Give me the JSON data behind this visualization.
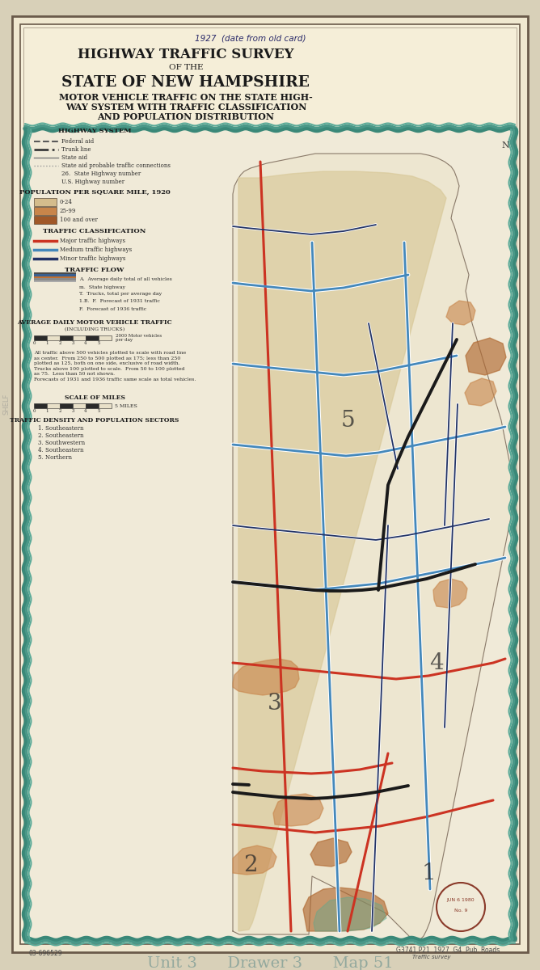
{
  "outer_bg": "#d8d0b8",
  "paper_color": "#f0e8d0",
  "inner_bg": "#f5eed8",
  "border_color": "#6a5a4a",
  "title_handwritten": "1927  (date from old card)",
  "title_line1": "HIGHWAY TRAFFIC SURVEY",
  "title_line2": "OF THE",
  "title_line3": "STATE OF NEW HAMPSHIRE",
  "title_line4": "MOTOR VEHICLE TRAFFIC ON THE STATE HIGH-",
  "title_line5": "WAY SYSTEM WITH TRAFFIC CLASSIFICATION",
  "title_line6": "AND POPULATION DISTRIBUTION",
  "legend_title_highway": "HIGHWAY SYSTEM",
  "legend_items_highway": [
    "Federal aid",
    "Trunk line",
    "State aid",
    "State aid probable traffic connections",
    "26.  State Highway number",
    "U.S. Highway number"
  ],
  "legend_title_pop": "POPULATION PER SQUARE MILE, 1920",
  "pop_colors": [
    "#d4bc8c",
    "#c8854a",
    "#a05828"
  ],
  "pop_labels": [
    "0-24",
    "25-99",
    "100 and over"
  ],
  "legend_title_traffic": "TRAFFIC CLASSIFICATION",
  "traffic_colors": [
    "#cc3322",
    "#4488bb",
    "#223366"
  ],
  "traffic_labels": [
    "Major traffic highways",
    "Medium traffic highways",
    "Minor traffic highways"
  ],
  "legend_title_flow": "TRAFFIC FLOW",
  "flow_labels": [
    "A.  Average daily total of all vehicles",
    "m.  State highway",
    "T.  Trucks, total per average day",
    "1.B.  F.  Forecast of 1931 traffic",
    "F.  Forecast of 1936 traffic"
  ],
  "avg_traffic_title": "AVERAGE DAILY MOTOR VEHICLE TRAFFIC",
  "avg_traffic_sub": "(INCLUDING TRUCKS)",
  "scale_title": "SCALE OF MILES",
  "density_title": "TRAFFIC DENSITY AND POPULATION SECTORS",
  "density_items": [
    "1. Southeastern",
    "2. Southeastern",
    "3. Southwestern",
    "4. Southeastern",
    "5. Northern"
  ],
  "bottom_left": "03-696529",
  "bottom_right1": "G3741.P21  1927 .G4  Pub. Roads",
  "bottom_right2": "Traffic survey",
  "bottom_center": "Unit 3      Drawer 3      Map 51",
  "stamp_line1": "JUN 6 1980",
  "stamp_line2": "No. 9",
  "nh_fill": "#ede6d0",
  "water_border": "#5a9a8a",
  "road_red": "#cc3322",
  "road_blue": "#4488bb",
  "road_dark": "#223366",
  "region_tan": "#d4bc8c",
  "region_orange": "#c8854a",
  "region_brown": "#a05828",
  "region_teal": "#5aaa9a"
}
